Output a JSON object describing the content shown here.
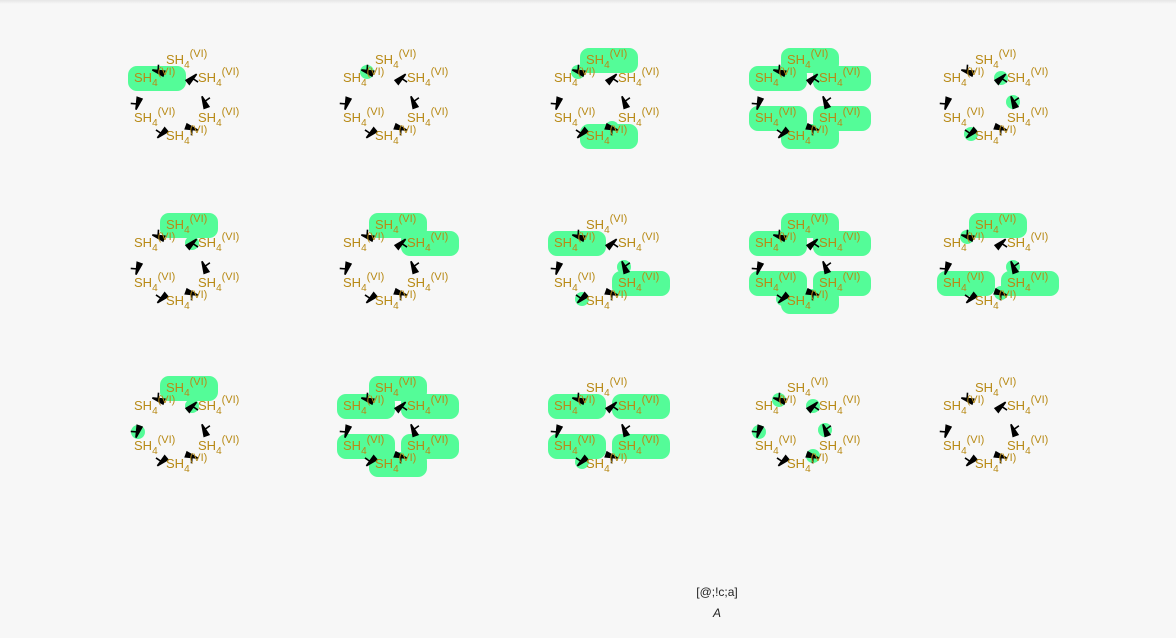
{
  "figure": {
    "smiles": "[@;!c;a]",
    "title": "A",
    "atom_label": {
      "base": "SH",
      "subscript": "4",
      "superscript": "(VI)"
    },
    "colors": {
      "highlight": "#54fc98",
      "label": "#b88a16",
      "bond": "#000000"
    }
  },
  "molecules": [
    {
      "highlights": [
        5
      ],
      "wedge_highlights": []
    },
    {
      "highlights": [],
      "wedge_highlights": [
        0
      ]
    },
    {
      "highlights": [
        0,
        3
      ],
      "wedge_highlights": [
        0,
        3
      ]
    },
    {
      "highlights": [
        0,
        1,
        2,
        3,
        4,
        5
      ],
      "wedge_highlights": []
    },
    {
      "highlights": [],
      "wedge_highlights": [
        1,
        2,
        4
      ]
    },
    {
      "highlights": [
        0
      ],
      "wedge_highlights": [
        1
      ]
    },
    {
      "highlights": [
        0,
        1
      ],
      "wedge_highlights": []
    },
    {
      "highlights": [
        5,
        2
      ],
      "wedge_highlights": [
        2,
        4
      ]
    },
    {
      "highlights": [
        0,
        1,
        2,
        3,
        4,
        5
      ],
      "wedge_highlights": [
        4
      ]
    },
    {
      "highlights": [
        0,
        2,
        4
      ],
      "wedge_highlights": [
        0,
        2,
        3
      ]
    },
    {
      "highlights": [
        0
      ],
      "wedge_highlights": [
        5,
        1
      ]
    },
    {
      "highlights": [
        0,
        1,
        2,
        3,
        4,
        5
      ],
      "wedge_highlights": []
    },
    {
      "highlights": [
        1,
        2,
        4,
        5
      ],
      "wedge_highlights": [
        4
      ]
    },
    {
      "highlights": [],
      "wedge_highlights": [
        0,
        1,
        2,
        3,
        5
      ]
    },
    {
      "highlights": [],
      "wedge_highlights": []
    }
  ]
}
